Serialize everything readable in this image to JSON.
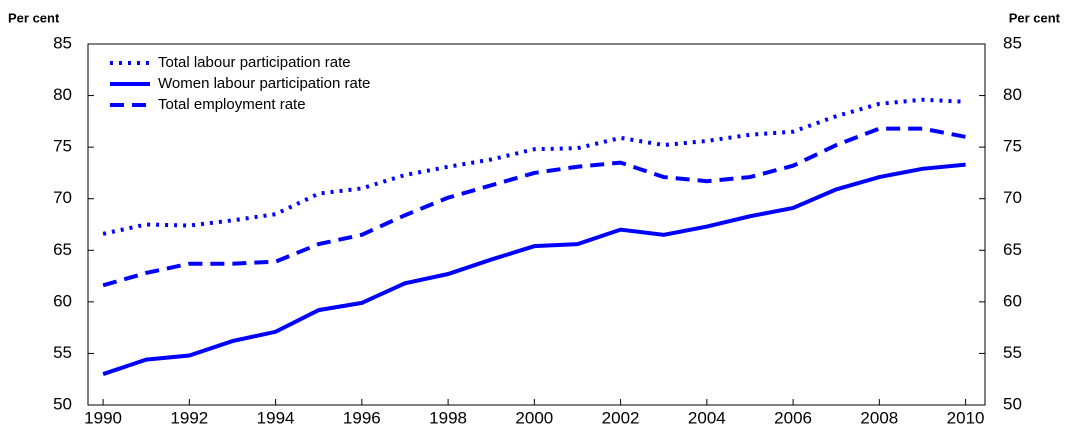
{
  "chart_data": {
    "type": "line",
    "y_label": "Per cent",
    "y2_label": "Per cent",
    "x": [
      1990,
      1991,
      1992,
      1993,
      1994,
      1995,
      1996,
      1997,
      1998,
      1999,
      2000,
      2001,
      2002,
      2003,
      2004,
      2005,
      2006,
      2007,
      2008,
      2009,
      2010
    ],
    "xlim": [
      1989.65,
      2010.45
    ],
    "xticks": [
      1990,
      1992,
      1994,
      1996,
      1998,
      2000,
      2002,
      2004,
      2006,
      2008,
      2010
    ],
    "ylim": [
      50,
      85
    ],
    "yticks": [
      50,
      55,
      60,
      65,
      70,
      75,
      80,
      85
    ],
    "y2lim": [
      50,
      85
    ],
    "y2ticks": [
      50,
      55,
      60,
      65,
      70,
      75,
      80,
      85
    ],
    "legend": "upper left",
    "series": [
      {
        "name": "Total labour participation rate",
        "color": "#0000ff",
        "dash": "dotted",
        "values": [
          66.6,
          67.5,
          67.4,
          67.9,
          68.5,
          70.5,
          71.0,
          72.3,
          73.1,
          73.8,
          74.8,
          74.9,
          75.9,
          75.2,
          75.6,
          76.2,
          76.5,
          78.0,
          79.2,
          79.6,
          79.4
        ]
      },
      {
        "name": "Women labour participation rate",
        "color": "#0000ff",
        "dash": "solid",
        "values": [
          53.0,
          54.4,
          54.8,
          56.2,
          57.1,
          59.2,
          59.9,
          61.8,
          62.7,
          64.1,
          65.4,
          65.6,
          67.0,
          66.5,
          67.3,
          68.3,
          69.1,
          70.9,
          72.1,
          72.9,
          73.3
        ]
      },
      {
        "name": "Total employment rate",
        "color": "#0000ff",
        "dash": "dashed",
        "values": [
          61.6,
          62.8,
          63.7,
          63.7,
          63.9,
          65.6,
          66.5,
          68.4,
          70.1,
          71.3,
          72.5,
          73.1,
          73.5,
          72.1,
          71.7,
          72.1,
          73.2,
          75.2,
          76.8,
          76.8,
          76.0
        ]
      }
    ]
  }
}
